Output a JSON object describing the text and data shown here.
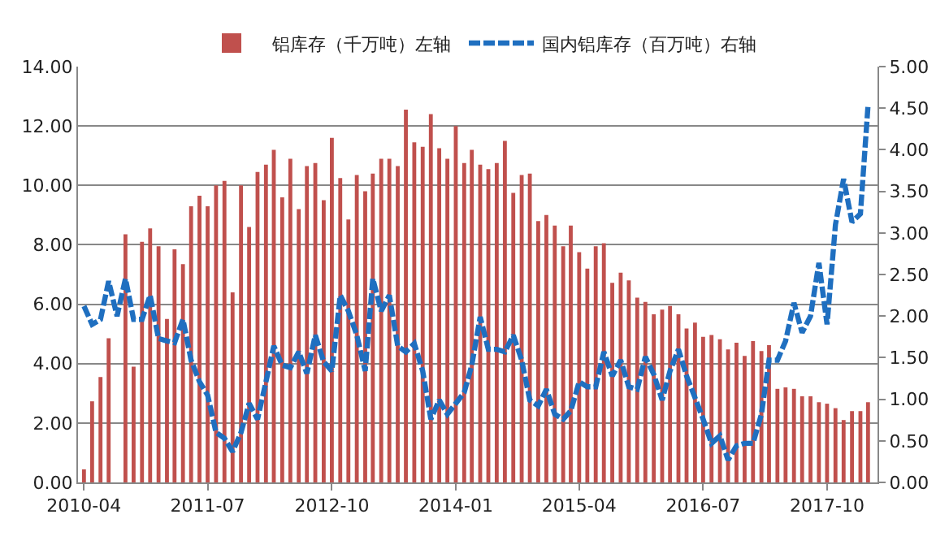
{
  "chart_data": {
    "type": "bar",
    "x": [
      "2010-04",
      "2010-05",
      "2010-06",
      "2010-07",
      "2010-08",
      "2010-09",
      "2010-10",
      "2010-11",
      "2010-12",
      "2011-01",
      "2011-02",
      "2011-03",
      "2011-04",
      "2011-05",
      "2011-06",
      "2011-07",
      "2011-08",
      "2011-09",
      "2011-10",
      "2011-11",
      "2011-12",
      "2012-01",
      "2012-02",
      "2012-03",
      "2012-04",
      "2012-05",
      "2012-06",
      "2012-07",
      "2012-08",
      "2012-09",
      "2012-10",
      "2012-11",
      "2012-12",
      "2013-01",
      "2013-02",
      "2013-03",
      "2013-04",
      "2013-05",
      "2013-06",
      "2013-07",
      "2013-08",
      "2013-09",
      "2013-10",
      "2013-11",
      "2013-12",
      "2014-01",
      "2014-02",
      "2014-03",
      "2014-04",
      "2014-05",
      "2014-06",
      "2014-07",
      "2014-08",
      "2014-09",
      "2014-10",
      "2014-11",
      "2014-12",
      "2015-01",
      "2015-02",
      "2015-03",
      "2015-04",
      "2015-05",
      "2015-06",
      "2015-07",
      "2015-08",
      "2015-09",
      "2015-10",
      "2015-11",
      "2015-12",
      "2016-01",
      "2016-02",
      "2016-03",
      "2016-04",
      "2016-05",
      "2016-06",
      "2016-07",
      "2016-08",
      "2016-09",
      "2016-10",
      "2016-11",
      "2016-12",
      "2017-01",
      "2017-02",
      "2017-03",
      "2017-04",
      "2017-05",
      "2017-06",
      "2017-07",
      "2017-08",
      "2017-09",
      "2017-10",
      "2017-11",
      "2017-12",
      "2018-01",
      "2018-02",
      "2018-03"
    ],
    "series": [
      {
        "name": "铝库存（千万吨）左轴",
        "color": "#c0504d",
        "values": [
          0.44,
          2.73,
          3.55,
          4.85,
          null,
          8.35,
          3.9,
          8.1,
          8.55,
          7.95,
          5.5,
          7.85,
          7.35,
          9.3,
          9.65,
          9.3,
          10.0,
          10.15,
          6.4,
          10.0,
          8.6,
          10.45,
          10.7,
          11.2,
          9.6,
          10.9,
          9.2,
          10.65,
          10.75,
          9.5,
          11.6,
          10.25,
          8.85,
          10.35,
          9.8,
          10.4,
          10.9,
          10.9,
          10.65,
          12.55,
          11.45,
          11.3,
          12.4,
          11.25,
          10.9,
          12.0,
          10.75,
          11.2,
          10.7,
          10.55,
          10.75,
          11.5,
          9.75,
          10.35,
          10.4,
          8.8,
          9.0,
          8.65,
          7.95,
          8.65,
          7.75,
          7.2,
          7.95,
          8.05,
          6.72,
          7.06,
          6.8,
          6.22,
          6.08,
          5.66,
          5.82,
          5.94,
          5.66,
          5.18,
          5.38,
          4.9,
          4.96,
          4.82,
          4.48,
          4.7,
          4.26,
          4.76,
          4.42,
          4.62,
          3.15,
          3.2,
          3.15,
          2.9,
          2.9,
          2.7,
          2.65,
          2.5,
          2.1,
          2.4,
          2.4,
          2.7
        ]
      },
      {
        "name": "国内铝库存（百万吨）右轴",
        "type": "line",
        "axis": "y2",
        "color": "#1f6fc0",
        "line_style": "dashed",
        "values": [
          2.12,
          1.9,
          1.96,
          2.42,
          2.0,
          2.45,
          1.96,
          1.96,
          2.25,
          1.73,
          1.7,
          1.68,
          1.96,
          1.47,
          1.21,
          1.05,
          0.6,
          0.53,
          0.37,
          0.6,
          0.95,
          0.76,
          1.21,
          1.64,
          1.41,
          1.38,
          1.57,
          1.31,
          1.77,
          1.45,
          1.34,
          2.25,
          2.06,
          1.77,
          1.34,
          2.45,
          2.06,
          2.25,
          1.64,
          1.57,
          1.67,
          1.34,
          0.76,
          0.99,
          0.82,
          0.95,
          1.08,
          1.41,
          1.99,
          1.6,
          1.6,
          1.57,
          1.77,
          1.47,
          0.99,
          0.92,
          1.12,
          0.82,
          0.76,
          0.86,
          1.21,
          1.15,
          1.15,
          1.57,
          1.28,
          1.47,
          1.15,
          1.12,
          1.51,
          1.3,
          0.99,
          1.34,
          1.6,
          1.28,
          1.02,
          0.76,
          0.47,
          0.56,
          0.27,
          0.44,
          0.47,
          0.47,
          0.82,
          1.47,
          1.47,
          1.7,
          2.16,
          1.8,
          2.0,
          2.64,
          1.9,
          3.1,
          3.65,
          3.13,
          3.23,
          4.53
        ]
      }
    ],
    "xlim": [
      "2010-03-10",
      "2018-04-05"
    ],
    "xticks": [
      "2010-04",
      "2011-07",
      "2012-10",
      "2014-01",
      "2015-04",
      "2016-07",
      "2017-10"
    ],
    "ylim": [
      0,
      14
    ],
    "yticks": [
      {
        "value": 0,
        "label": "0.00"
      },
      {
        "value": 2,
        "label": "2.00"
      },
      {
        "value": 4,
        "label": "4.00"
      },
      {
        "value": 6,
        "label": "6.00"
      },
      {
        "value": 8,
        "label": "8.00"
      },
      {
        "value": 10,
        "label": "10.00"
      },
      {
        "value": 12,
        "label": "12.00"
      },
      {
        "value": 14,
        "label": "14.00"
      }
    ],
    "y2lim": [
      0,
      5
    ],
    "y2ticks": [
      {
        "value": 0,
        "label": "0.00"
      },
      {
        "value": 0.5,
        "label": "0.50"
      },
      {
        "value": 1,
        "label": "1.00"
      },
      {
        "value": 1.5,
        "label": "1.50"
      },
      {
        "value": 2,
        "label": "2.00"
      },
      {
        "value": 2.5,
        "label": "2.50"
      },
      {
        "value": 3,
        "label": "3.00"
      },
      {
        "value": 3.5,
        "label": "3.50"
      },
      {
        "value": 4,
        "label": "4.00"
      },
      {
        "value": 4.5,
        "label": "4.50"
      },
      {
        "value": 5,
        "label": "5.00"
      }
    ],
    "grid": "y",
    "legend": "top"
  }
}
